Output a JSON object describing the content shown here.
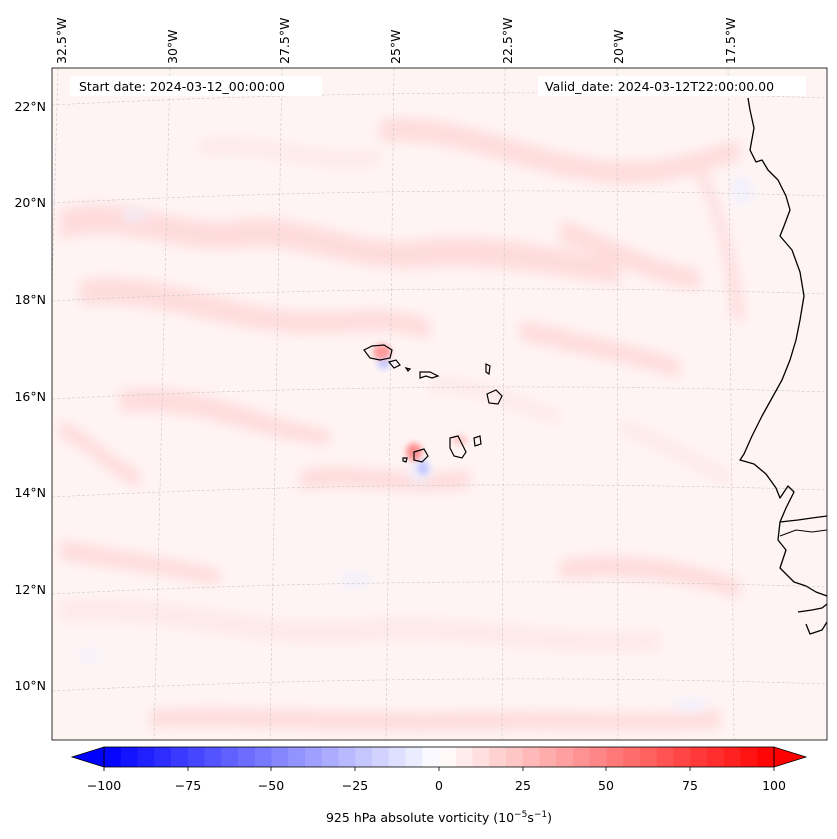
{
  "map": {
    "start_label": "Start date: 2024-03-12_00:00:00",
    "valid_label": "Valid_date: 2024-03-12T22:00:00.00",
    "lon_labels": [
      "32.5°W",
      "30°W",
      "27.5°W",
      "25°W",
      "22.5°W",
      "20°W",
      "17.5°W"
    ],
    "lat_labels": [
      "22°N",
      "20°N",
      "18°N",
      "16°N",
      "14°N",
      "12°N",
      "10°N"
    ]
  },
  "colorbar": {
    "label": "925 hPa absolute vorticity (10",
    "label_exp1": "−5",
    "label_mid": "s",
    "label_exp2": "−1",
    "label_end": ")",
    "tick_labels": [
      "−100",
      "−75",
      "−50",
      "−25",
      "0",
      "25",
      "50",
      "75",
      "100"
    ],
    "min": -100,
    "max": 100,
    "low_color": "#0000ff",
    "high_color": "#ff0000"
  },
  "colors": {
    "background_field": "#fff4f4",
    "coastline": "#000000",
    "gridline": "#cccccc"
  }
}
